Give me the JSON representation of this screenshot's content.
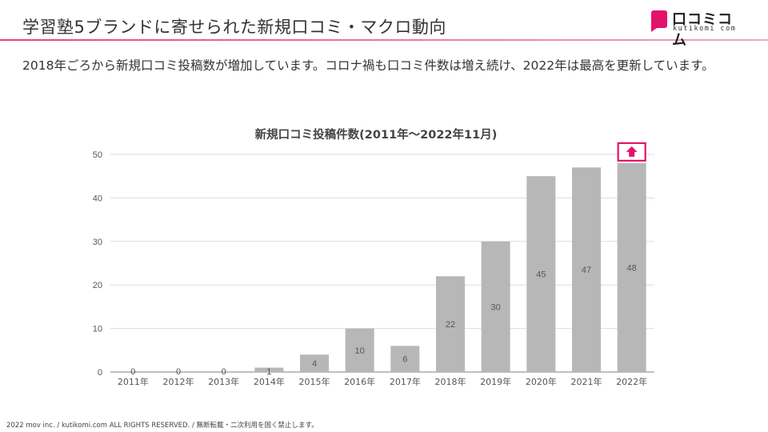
{
  "header": {
    "title": "学習塾5ブランドに寄せられた新規口コミ・マクロ動向",
    "logo_text": "口コミコム",
    "logo_subtext": "kutikomi com"
  },
  "lead_text": "2018年ごろから新規口コミ投稿数が増加しています。コロナ禍も口コミ件数は増え続け、2022年は最高を更新しています。",
  "colors": {
    "accent": "#e4136a",
    "bar": "#b7b7b7",
    "grid": "#dddddd"
  },
  "chart_data": {
    "type": "bar",
    "title": "新規口コミ投稿件数(2011年〜2022年11月)",
    "xlabel": "",
    "ylabel": "",
    "categories": [
      "2011年",
      "2012年",
      "2013年",
      "2014年",
      "2015年",
      "2016年",
      "2017年",
      "2018年",
      "2019年",
      "2020年",
      "2021年",
      "2022年"
    ],
    "values": [
      0,
      0,
      0,
      1,
      4,
      10,
      6,
      22,
      30,
      45,
      47,
      48
    ],
    "data_labels": [
      "0",
      "0",
      "0",
      "1",
      "4",
      "10",
      "6",
      "22",
      "30",
      "45",
      "47",
      "48"
    ],
    "ylim": [
      0,
      50
    ],
    "yticks": [
      0,
      10,
      20,
      30,
      40,
      50
    ],
    "grid": true,
    "highlight": {
      "category": "2022年",
      "marker": "up-arrow"
    }
  },
  "footer": "2022 mov inc. / kutikomi.com ALL RIGHTS RESERVED. / 無断転載・二次利用を固く禁止します。"
}
